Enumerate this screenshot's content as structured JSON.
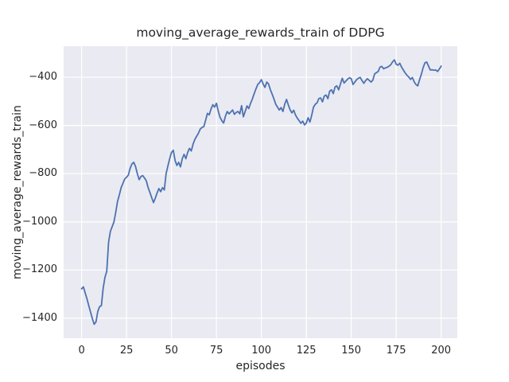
{
  "chart_data": {
    "type": "line",
    "title": "moving_average_rewards_train of DDPG",
    "xlabel": "episodes",
    "ylabel": "moving_average_rewards_train",
    "x_ticks": [
      0,
      25,
      50,
      75,
      100,
      125,
      150,
      175,
      200
    ],
    "y_ticks": [
      -400,
      -600,
      -800,
      -1000,
      -1200,
      -1400
    ],
    "xlim": [
      -10,
      209
    ],
    "ylim": [
      -1483,
      -271
    ],
    "grid": true,
    "legend_position": "none",
    "colors": {
      "line": "#4c72b0",
      "axes_background": "#eaeaf2",
      "grid": "#ffffff",
      "figure_background": "#ffffff",
      "text": "#262626"
    },
    "line_width": 1.8,
    "series": [
      {
        "name": "moving_average_rewards_train",
        "x": [
          0,
          1,
          2,
          3,
          4,
          5,
          6,
          7,
          8,
          9,
          10,
          11,
          12,
          13,
          14,
          15,
          16,
          17,
          18,
          19,
          20,
          21,
          22,
          23,
          24,
          25,
          26,
          27,
          28,
          29,
          30,
          31,
          32,
          33,
          34,
          35,
          36,
          37,
          38,
          39,
          40,
          41,
          42,
          43,
          44,
          45,
          46,
          47,
          48,
          49,
          50,
          51,
          52,
          53,
          54,
          55,
          56,
          57,
          58,
          59,
          60,
          61,
          62,
          63,
          64,
          65,
          66,
          67,
          68,
          69,
          70,
          71,
          72,
          73,
          74,
          75,
          76,
          77,
          78,
          79,
          80,
          81,
          82,
          83,
          84,
          85,
          86,
          87,
          88,
          89,
          90,
          91,
          92,
          93,
          94,
          95,
          96,
          97,
          98,
          99,
          100,
          101,
          102,
          103,
          104,
          105,
          106,
          107,
          108,
          109,
          110,
          111,
          112,
          113,
          114,
          115,
          116,
          117,
          118,
          119,
          120,
          121,
          122,
          123,
          124,
          125,
          126,
          127,
          128,
          129,
          130,
          131,
          132,
          133,
          134,
          135,
          136,
          137,
          138,
          139,
          140,
          141,
          142,
          143,
          144,
          145,
          146,
          147,
          148,
          149,
          150,
          151,
          152,
          153,
          154,
          155,
          156,
          157,
          158,
          159,
          160,
          161,
          162,
          163,
          164,
          165,
          166,
          167,
          168,
          169,
          170,
          171,
          172,
          173,
          174,
          175,
          176,
          177,
          178,
          179,
          180,
          181,
          182,
          183,
          184,
          185,
          186,
          187,
          188,
          189,
          190,
          191,
          192,
          193,
          194,
          195,
          196,
          197,
          198,
          199,
          200
        ],
        "y": [
          -1278,
          -1270,
          -1295,
          -1320,
          -1348,
          -1375,
          -1402,
          -1425,
          -1415,
          -1372,
          -1352,
          -1348,
          -1275,
          -1230,
          -1205,
          -1085,
          -1040,
          -1020,
          -1000,
          -960,
          -915,
          -888,
          -858,
          -840,
          -822,
          -815,
          -806,
          -778,
          -760,
          -753,
          -770,
          -800,
          -825,
          -812,
          -808,
          -818,
          -830,
          -858,
          -878,
          -900,
          -920,
          -902,
          -880,
          -862,
          -875,
          -858,
          -868,
          -800,
          -768,
          -738,
          -712,
          -703,
          -745,
          -766,
          -753,
          -772,
          -738,
          -720,
          -738,
          -712,
          -695,
          -706,
          -678,
          -658,
          -645,
          -632,
          -615,
          -608,
          -605,
          -578,
          -550,
          -556,
          -532,
          -514,
          -524,
          -508,
          -540,
          -566,
          -580,
          -590,
          -562,
          -542,
          -552,
          -544,
          -536,
          -554,
          -546,
          -542,
          -552,
          -518,
          -564,
          -542,
          -519,
          -530,
          -508,
          -490,
          -468,
          -448,
          -430,
          -422,
          -410,
          -428,
          -442,
          -420,
          -428,
          -452,
          -470,
          -490,
          -512,
          -524,
          -536,
          -526,
          -542,
          -512,
          -492,
          -515,
          -535,
          -548,
          -537,
          -557,
          -570,
          -580,
          -591,
          -582,
          -598,
          -590,
          -568,
          -586,
          -558,
          -524,
          -512,
          -506,
          -488,
          -486,
          -502,
          -478,
          -474,
          -489,
          -458,
          -452,
          -468,
          -440,
          -436,
          -452,
          -428,
          -404,
          -424,
          -416,
          -408,
          -402,
          -406,
          -430,
          -420,
          -410,
          -404,
          -401,
          -414,
          -425,
          -414,
          -406,
          -413,
          -420,
          -412,
          -386,
          -381,
          -376,
          -358,
          -355,
          -365,
          -361,
          -359,
          -354,
          -348,
          -336,
          -328,
          -346,
          -350,
          -342,
          -358,
          -370,
          -382,
          -392,
          -399,
          -409,
          -401,
          -419,
          -430,
          -436,
          -410,
          -388,
          -360,
          -340,
          -337,
          -354,
          -370,
          -369,
          -371,
          -370,
          -376,
          -366,
          -354
        ]
      }
    ]
  }
}
